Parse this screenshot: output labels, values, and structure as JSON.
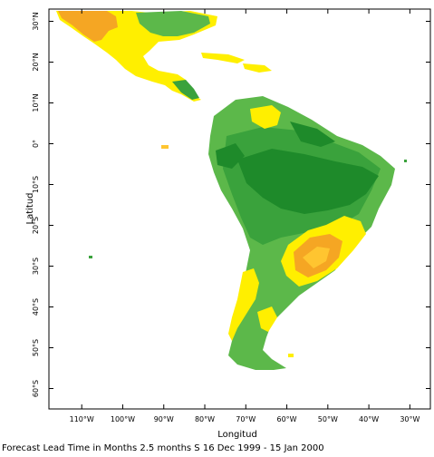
{
  "map": {
    "x_axis_title": "Longitud",
    "y_axis_title": "Latitud",
    "lon_labels": [
      "110°W",
      "100°W",
      "90°W",
      "80°W",
      "70°W",
      "60°W",
      "50°W",
      "40°W",
      "30°W"
    ],
    "lat_labels": [
      "30°N",
      "20°N",
      "10°N",
      "0°",
      "10°S",
      "20°S",
      "30°S",
      "40°S",
      "50°S",
      "60°S"
    ],
    "lon_range": [
      -118,
      -25
    ],
    "lat_range": [
      33,
      -65
    ],
    "colors": {
      "dark_green": "#1e8a2a",
      "mid_green": "#3aa23c",
      "light_green": "#5cb84a",
      "yellow": "#ffef00",
      "light_orange": "#ffc530",
      "orange": "#f5a623"
    },
    "caption": "Forecast Lead Time in Months 2.5 months S 16 Dec 1999 - 15 Jan 2000"
  }
}
